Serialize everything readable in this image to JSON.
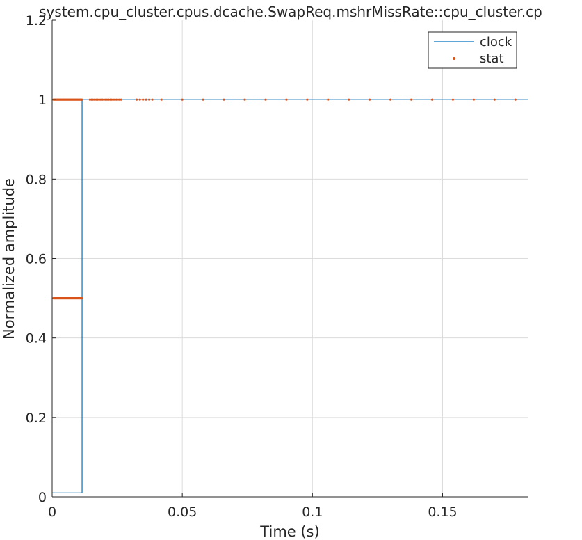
{
  "chart_data": {
    "type": "line",
    "title": "system.cpu_cluster.cpus.dcache.SwapReq.mshrMissRate::cpu_cluster.cp",
    "xlabel": "Time (s)",
    "ylabel": "Normalized amplitude",
    "xlim": [
      0,
      0.183
    ],
    "ylim": [
      0,
      1.2
    ],
    "xticks": [
      0,
      0.05,
      0.1,
      0.15
    ],
    "xtick_labels": [
      "0",
      "0.05",
      "0.1",
      "0.15"
    ],
    "yticks": [
      0,
      0.2,
      0.4,
      0.6,
      0.8,
      1,
      1.2
    ],
    "ytick_labels": [
      "0",
      "0.2",
      "0.4",
      "0.6",
      "0.8",
      "1",
      "1.2"
    ],
    "grid": true,
    "legend_position": "top-right",
    "series": [
      {
        "name": "clock",
        "style": "line",
        "color": "#0072BD",
        "x": [
          0,
          0.0115,
          0.0115,
          0.183
        ],
        "y": [
          0.01,
          0.01,
          1,
          1
        ]
      },
      {
        "name": "stat",
        "style": "points",
        "color": "#D95319",
        "clusters": [
          {
            "x_start": 0.0005,
            "x_end": 0.0115,
            "step": 0.00025,
            "y": 0.5
          },
          {
            "x_start": 0.0005,
            "x_end": 0.0115,
            "step": 0.00025,
            "y": 1
          },
          {
            "x_start": 0.0145,
            "x_end": 0.027,
            "step": 0.0006,
            "y": 1
          },
          {
            "x_start": 0.0325,
            "x_end": 0.0385,
            "step": 0.0012,
            "y": 1
          },
          {
            "x_start": 0.042,
            "x_end": 0.182,
            "step": 0.008,
            "y": 1
          }
        ]
      }
    ]
  }
}
